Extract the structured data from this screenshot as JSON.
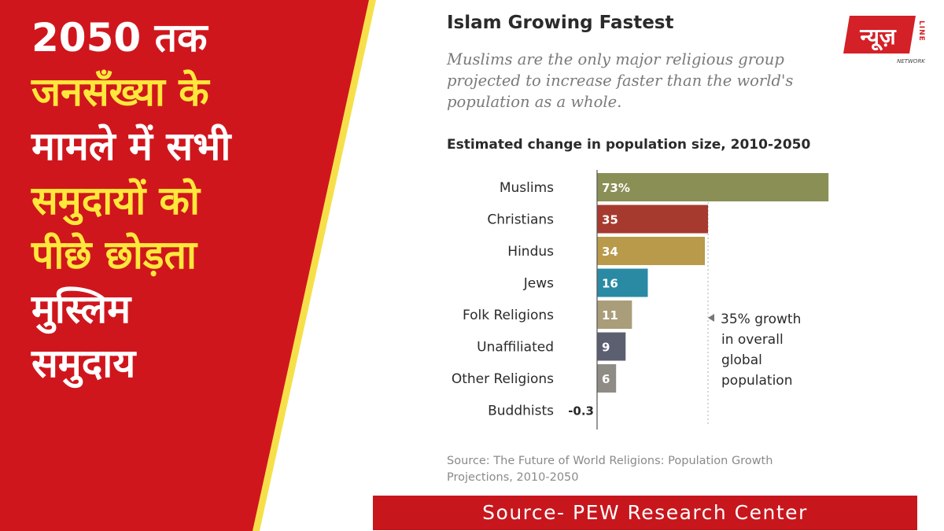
{
  "headline": {
    "line1": "2050 तक",
    "line2": "जनसँख्या के",
    "line3": "मामले में सभी",
    "line4": "समुदायों को",
    "line5": "पीछे छोड़ता",
    "line6": "मुस्लिम",
    "line7": "समुदाय"
  },
  "chart_data": {
    "type": "bar",
    "orientation": "horizontal",
    "title": "Islam Growing Fastest",
    "subtitle": "Muslims are the only major religious group projected to increase faster than the world's population as a whole.",
    "axis_title": "Estimated change in population size, 2010-2050",
    "categories": [
      "Muslims",
      "Christians",
      "Hindus",
      "Jews",
      "Folk Religions",
      "Unaffiliated",
      "Other Religions",
      "Buddhists"
    ],
    "values": [
      73,
      35,
      34,
      16,
      11,
      9,
      6,
      -0.3
    ],
    "value_labels": [
      "73%",
      "35",
      "34",
      "16",
      "11",
      "9",
      "6",
      "-0.3"
    ],
    "colors": [
      "#8a8f56",
      "#a63a2e",
      "#b99a4a",
      "#2a8aa4",
      "#a99d7a",
      "#5c5f70",
      "#8f8c86",
      "#6a6a6a"
    ],
    "reference_line": {
      "value": 35,
      "label": [
        "35% growth",
        "in overall",
        "global",
        "population"
      ]
    },
    "source": "Source: The Future of World Religions: Population Growth Projections, 2010-2050"
  },
  "footer": {
    "text": "Source- PEW Research Center"
  },
  "logo": {
    "text": "न्यूज़",
    "side_text": "LINE",
    "sub_text": "NETWORK",
    "brand_color": "#d42027"
  },
  "colors": {
    "panel_red": "#d0161d",
    "headline_yellow": "#ffe83b",
    "divider_yellow": "#f6e04a",
    "footer_red": "#c8161d"
  }
}
